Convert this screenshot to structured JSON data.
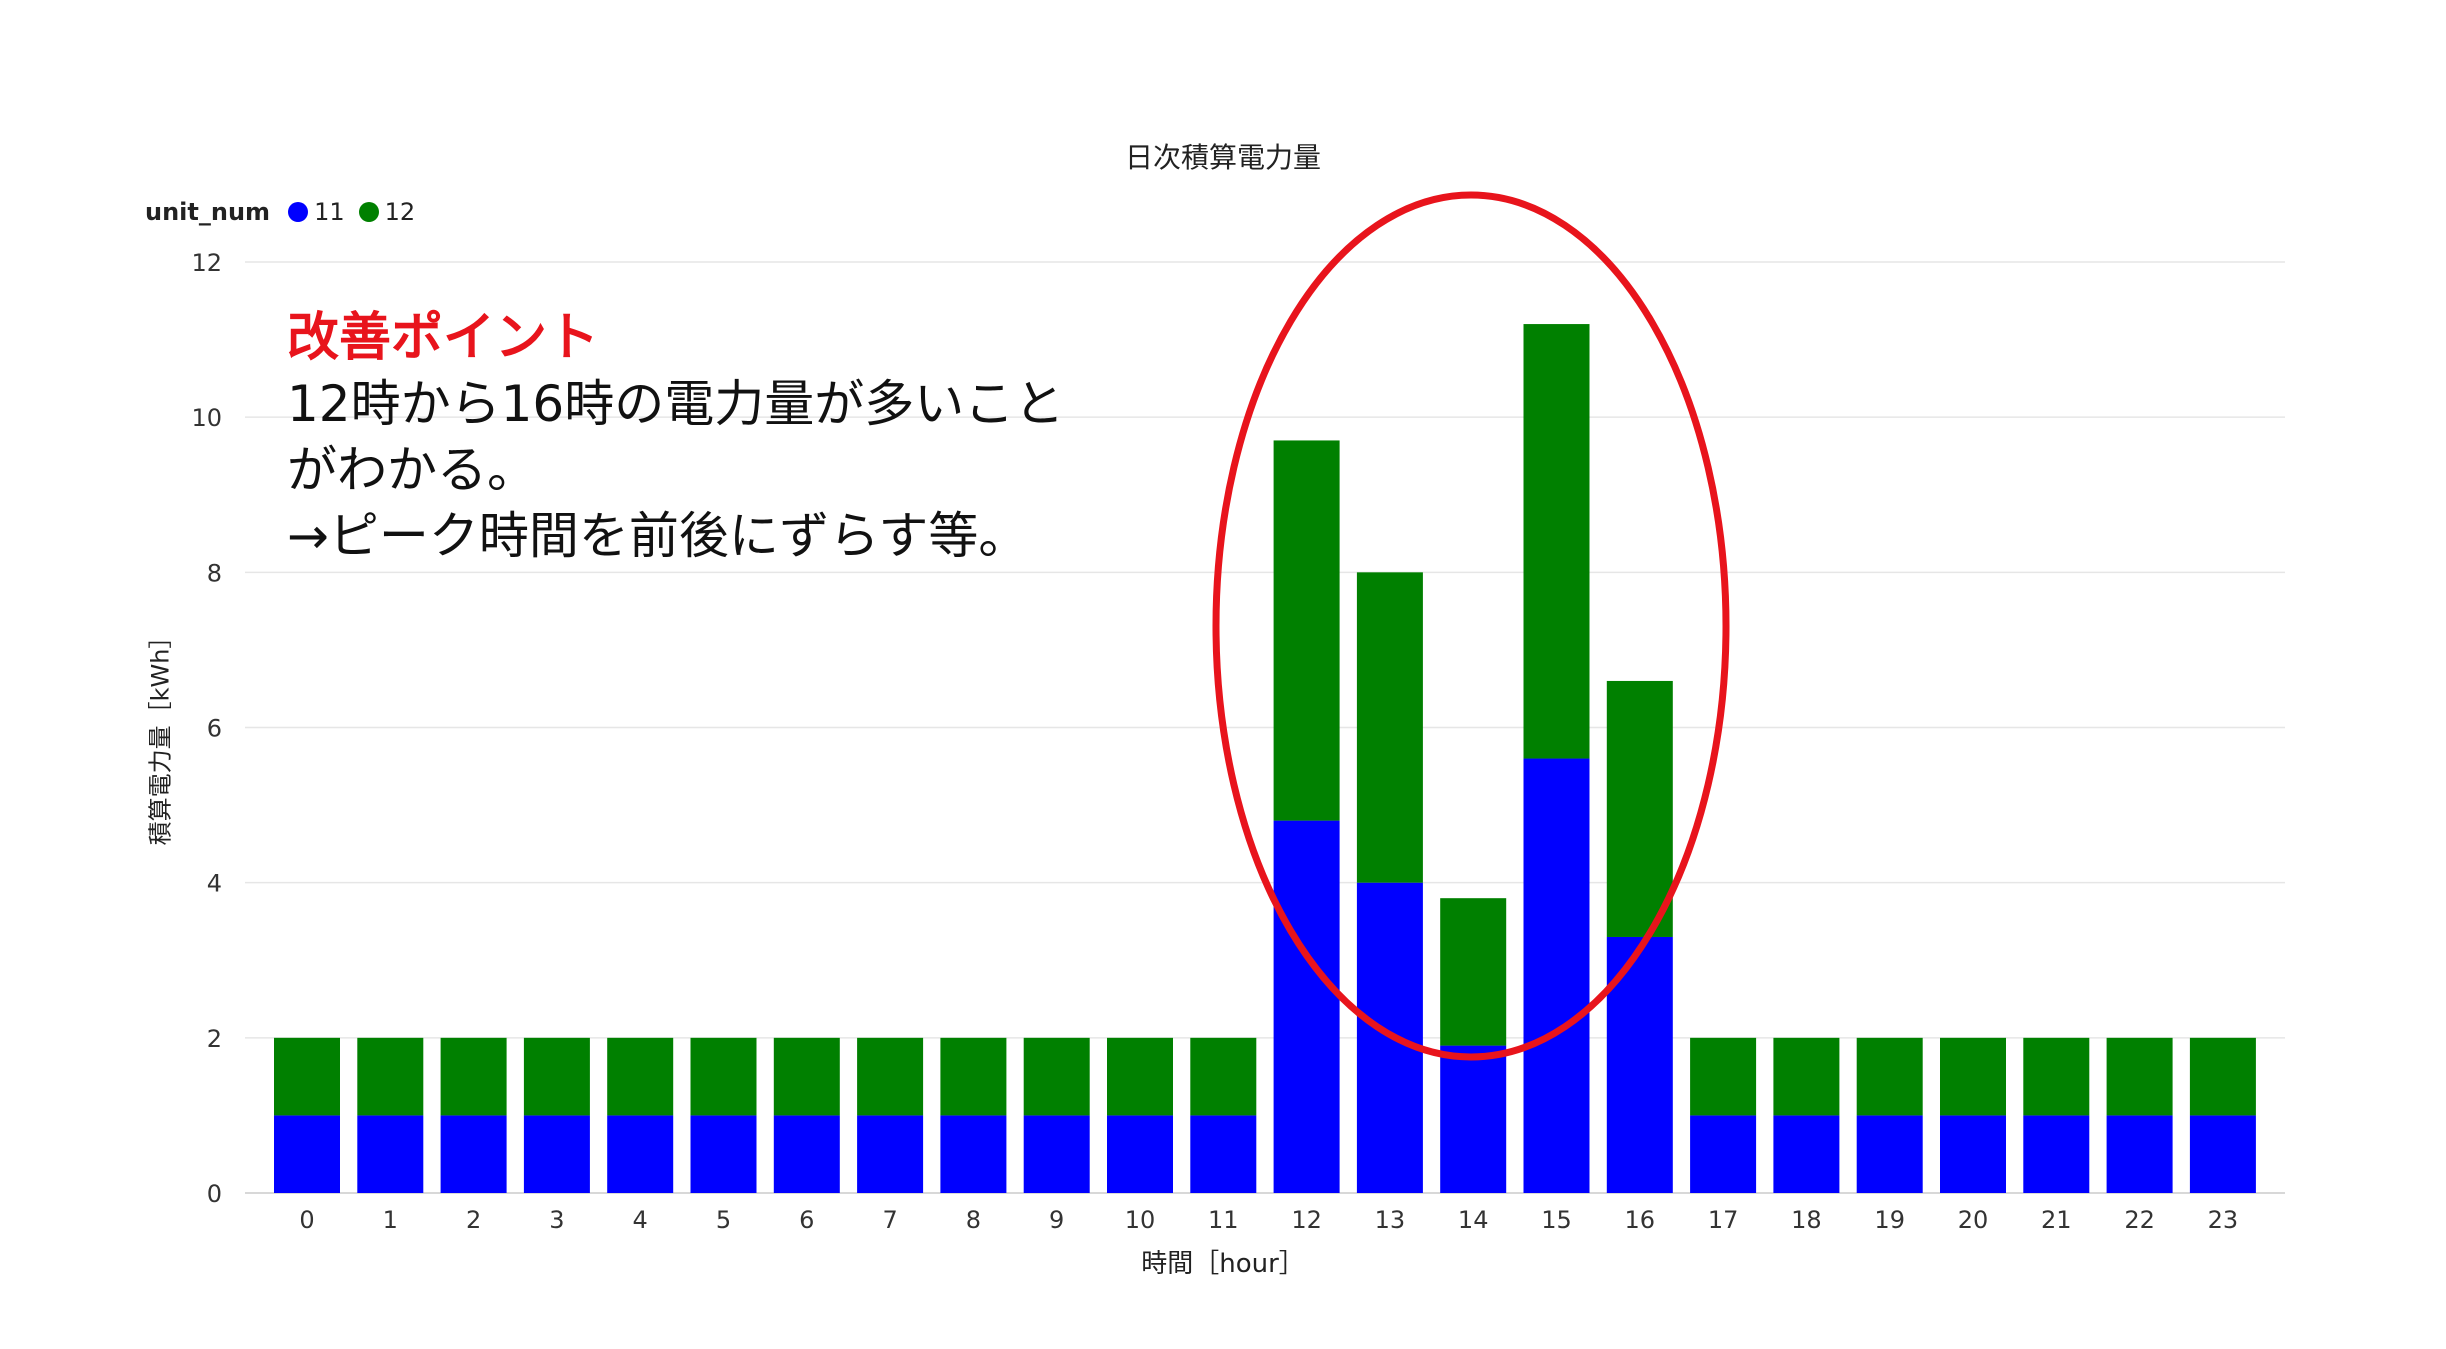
{
  "chart_data": {
    "type": "bar",
    "stacked": true,
    "title": "日次積算電力量",
    "xlabel": "時間［hour］",
    "ylabel": "積算電力量［kWh］",
    "legend_title": "unit_num",
    "legend_position": "top-left",
    "categories": [
      "0",
      "1",
      "2",
      "3",
      "4",
      "5",
      "6",
      "7",
      "8",
      "9",
      "10",
      "11",
      "12",
      "13",
      "14",
      "15",
      "16",
      "17",
      "18",
      "19",
      "20",
      "21",
      "22",
      "23"
    ],
    "series": [
      {
        "name": "11",
        "color": "#0000ff",
        "values": [
          1,
          1,
          1,
          1,
          1,
          1,
          1,
          1,
          1,
          1,
          1,
          1,
          4.8,
          4.0,
          1.9,
          5.6,
          3.3,
          1,
          1,
          1,
          1,
          1,
          1,
          1
        ]
      },
      {
        "name": "12",
        "color": "#008000",
        "values": [
          1,
          1,
          1,
          1,
          1,
          1,
          1,
          1,
          1,
          1,
          1,
          1,
          4.9,
          4.0,
          1.9,
          5.6,
          3.3,
          1,
          1,
          1,
          1,
          1,
          1,
          1
        ]
      }
    ],
    "ylim": [
      0,
      12
    ],
    "yticks": [
      0,
      2,
      4,
      6,
      8,
      10,
      12
    ],
    "grid": true
  },
  "annotation": {
    "heading": "改善ポイント",
    "lines": [
      "12時から16時の電力量が多いこと",
      "がわかる。",
      "→ピーク時間を前後にずらす等。"
    ],
    "heading_color": "#e8141c",
    "highlight_color": "#e8141c"
  }
}
